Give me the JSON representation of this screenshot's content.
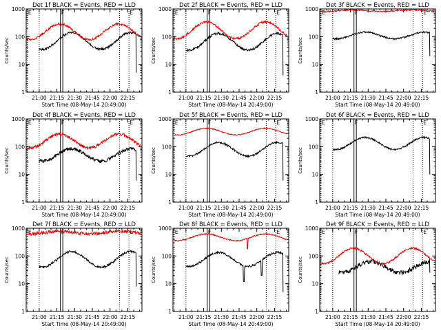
{
  "figure": {
    "background": "#ffffff",
    "axis_color": "#000000",
    "events_color": "#000000",
    "lld_color": "#e00000"
  },
  "chart_data": [
    {
      "type": "line",
      "title": "Det 1f BLACK = Events, RED = LLD",
      "xlabel": "Start Time (08-May-14 20:49:00)",
      "ylabel": "Counts/sec",
      "ylog": true,
      "ylim": [
        1,
        1000
      ],
      "xlim": [
        "20:49",
        "22:27"
      ],
      "x_ticks": [
        "21:00",
        "21:15",
        "21:30",
        "21:45",
        "22:00",
        "22:15"
      ],
      "y_ticks": [
        "1",
        "10",
        "100",
        "1000"
      ],
      "markers": [
        {
          "label": "E",
          "time": "20:50",
          "style": "dotted"
        },
        {
          "label": "",
          "time": "21:00",
          "style": "dotted"
        },
        {
          "label": "F",
          "time": "21:18",
          "style": "solid"
        },
        {
          "label": "",
          "time": "21:20",
          "style": "solid"
        },
        {
          "label": "",
          "time": "22:08",
          "style": "dotted"
        },
        {
          "label": "E",
          "time": "22:16",
          "style": "dotted"
        }
      ],
      "series": [
        {
          "name": "Events",
          "color": "#000000",
          "start": "21:00",
          "end": "22:22",
          "base": 70,
          "amplitude": 0.3,
          "period_min": 50,
          "phase_min": 15,
          "noise": 0.04,
          "drop_end": 5,
          "spikes": []
        },
        {
          "name": "LLD",
          "color": "#e00000",
          "start": "20:50",
          "end": "22:26",
          "base": 150,
          "amplitude": 0.28,
          "period_min": 50,
          "phase_min": 15,
          "noise": 0.04,
          "drop_end": null,
          "spikes": []
        }
      ]
    },
    {
      "type": "line",
      "title": "Det 2f BLACK = Events, RED = LLD",
      "xlabel": "Start Time (08-May-14 20:49:00)",
      "ylabel": "Counts/sec",
      "ylog": true,
      "ylim": [
        1,
        1000
      ],
      "xlim": [
        "20:49",
        "22:27"
      ],
      "x_ticks": [
        "21:00",
        "21:15",
        "21:30",
        "21:45",
        "22:00",
        "22:15"
      ],
      "y_ticks": [
        "1",
        "10",
        "100",
        "1000"
      ],
      "markers": [
        {
          "label": "E",
          "time": "20:50",
          "style": "dotted"
        },
        {
          "label": "",
          "time": "21:00",
          "style": "dotted"
        },
        {
          "label": "F",
          "time": "21:18",
          "style": "solid"
        },
        {
          "label": "",
          "time": "21:20",
          "style": "solid"
        },
        {
          "label": "",
          "time": "22:08",
          "style": "dotted"
        },
        {
          "label": "E",
          "time": "22:16",
          "style": "dotted"
        }
      ],
      "series": [
        {
          "name": "Events",
          "color": "#000000",
          "start": "21:00",
          "end": "22:22",
          "base": 65,
          "amplitude": 0.3,
          "period_min": 50,
          "phase_min": 15,
          "noise": 0.04,
          "drop_end": 4,
          "spikes": []
        },
        {
          "name": "LLD",
          "color": "#e00000",
          "start": "20:50",
          "end": "22:26",
          "base": 170,
          "amplitude": 0.3,
          "period_min": 50,
          "phase_min": 15,
          "noise": 0.04,
          "drop_end": null,
          "spikes": []
        }
      ]
    },
    {
      "type": "line",
      "title": "Det 3f BLACK = Events, RED = LLD",
      "xlabel": "Start Time (08-May-14 20:49:00)",
      "ylabel": "Counts/sec",
      "ylog": true,
      "ylim": [
        1,
        1000
      ],
      "xlim": [
        "20:49",
        "22:27"
      ],
      "x_ticks": [
        "21:00",
        "21:15",
        "21:30",
        "21:45",
        "22:00",
        "22:15"
      ],
      "y_ticks": [
        "1",
        "10",
        "100",
        "1000"
      ],
      "markers": [
        {
          "label": "E",
          "time": "20:50",
          "style": "dotted"
        },
        {
          "label": "",
          "time": "21:00",
          "style": "dotted"
        },
        {
          "label": "F",
          "time": "21:18",
          "style": "solid"
        },
        {
          "label": "",
          "time": "21:20",
          "style": "solid"
        },
        {
          "label": "",
          "time": "22:08",
          "style": "dotted"
        },
        {
          "label": "E",
          "time": "22:16",
          "style": "dotted"
        }
      ],
      "series": [
        {
          "name": "Events",
          "color": "#000000",
          "start": "21:00",
          "end": "22:22",
          "base": 110,
          "amplitude": 0.12,
          "period_min": 50,
          "phase_min": 15,
          "noise": 0.03,
          "drop_end": 20,
          "spikes": []
        },
        {
          "name": "LLD",
          "color": "#e00000",
          "start": "20:50",
          "end": "22:26",
          "base": 860,
          "amplitude": 0.03,
          "period_min": 50,
          "phase_min": 15,
          "noise": 0.025,
          "drop_end": null,
          "spikes": []
        }
      ]
    },
    {
      "type": "line",
      "title": "Det 4f BLACK = Events, RED = LLD",
      "xlabel": "Start Time (08-May-14 20:49:00)",
      "ylabel": "Counts/sec",
      "ylog": true,
      "ylim": [
        1,
        1000
      ],
      "xlim": [
        "20:49",
        "22:27"
      ],
      "x_ticks": [
        "21:00",
        "21:15",
        "21:30",
        "21:45",
        "22:00",
        "22:15"
      ],
      "y_ticks": [
        "1",
        "10",
        "100",
        "1000"
      ],
      "markers": [
        {
          "label": "E",
          "time": "20:50",
          "style": "dotted"
        },
        {
          "label": "",
          "time": "21:00",
          "style": "dotted"
        },
        {
          "label": "F",
          "time": "21:18",
          "style": "solid"
        },
        {
          "label": "",
          "time": "21:20",
          "style": "solid"
        },
        {
          "label": "",
          "time": "22:08",
          "style": "dotted"
        },
        {
          "label": "E",
          "time": "22:16",
          "style": "dotted"
        }
      ],
      "series": [
        {
          "name": "Events",
          "color": "#000000",
          "start": "21:00",
          "end": "22:22",
          "base": 50,
          "amplitude": 0.22,
          "period_min": 50,
          "phase_min": 15,
          "noise": 0.06,
          "drop_end": 6,
          "spikes": []
        },
        {
          "name": "LLD",
          "color": "#e00000",
          "start": "20:50",
          "end": "22:26",
          "base": 160,
          "amplitude": 0.25,
          "period_min": 50,
          "phase_min": 15,
          "noise": 0.05,
          "drop_end": null,
          "spikes": []
        }
      ]
    },
    {
      "type": "line",
      "title": "Det 5f BLACK = Events, RED = LLD",
      "xlabel": "Start Time (08-May-14 20:49:00)",
      "ylabel": "Counts/sec",
      "ylog": true,
      "ylim": [
        1,
        1000
      ],
      "xlim": [
        "20:49",
        "22:27"
      ],
      "x_ticks": [
        "21:00",
        "21:15",
        "21:30",
        "21:45",
        "22:00",
        "22:15"
      ],
      "y_ticks": [
        "1",
        "10",
        "100",
        "1000"
      ],
      "markers": [
        {
          "label": "E",
          "time": "20:50",
          "style": "dotted"
        },
        {
          "label": "",
          "time": "21:00",
          "style": "dotted"
        },
        {
          "label": "F",
          "time": "21:18",
          "style": "solid"
        },
        {
          "label": "",
          "time": "21:20",
          "style": "solid"
        },
        {
          "label": "",
          "time": "22:08",
          "style": "dotted"
        },
        {
          "label": "E",
          "time": "22:16",
          "style": "dotted"
        }
      ],
      "series": [
        {
          "name": "Events",
          "color": "#000000",
          "start": "21:00",
          "end": "22:22",
          "base": 80,
          "amplitude": 0.25,
          "period_min": 50,
          "phase_min": 15,
          "noise": 0.03,
          "drop_end": 6,
          "spikes": []
        },
        {
          "name": "LLD",
          "color": "#e00000",
          "start": "20:50",
          "end": "22:26",
          "base": 350,
          "amplitude": 0.12,
          "period_min": 50,
          "phase_min": 15,
          "noise": 0.015,
          "drop_end": null,
          "spikes": []
        }
      ]
    },
    {
      "type": "line",
      "title": "Det 6f BLACK = Events, RED = LLD",
      "xlabel": "Start Time (08-May-14 20:49:00)",
      "ylabel": "Counts/sec",
      "ylog": true,
      "ylim": [
        1,
        1000
      ],
      "xlim": [
        "20:49",
        "22:27"
      ],
      "x_ticks": [
        "21:00",
        "21:15",
        "21:30",
        "21:45",
        "22:00",
        "22:15"
      ],
      "y_ticks": [
        "1",
        "10",
        "100",
        "1000"
      ],
      "markers": [
        {
          "label": "E",
          "time": "20:50",
          "style": "dotted"
        },
        {
          "label": "",
          "time": "21:00",
          "style": "dotted"
        },
        {
          "label": "F",
          "time": "21:18",
          "style": "solid"
        },
        {
          "label": "",
          "time": "21:20",
          "style": "solid"
        },
        {
          "label": "",
          "time": "22:08",
          "style": "dotted"
        },
        {
          "label": "E",
          "time": "22:16",
          "style": "dotted"
        }
      ],
      "series": [
        {
          "name": "Events",
          "color": "#000000",
          "start": "21:00",
          "end": "22:22",
          "base": 130,
          "amplitude": 0.22,
          "period_min": 50,
          "phase_min": 15,
          "noise": 0.03,
          "drop_end": 10,
          "spikes": []
        }
      ]
    },
    {
      "type": "line",
      "title": "Det 7f BLACK = Events, RED = LLD",
      "xlabel": "Start Time (08-May-14 20:49:00)",
      "ylabel": "Counts/sec",
      "ylog": true,
      "ylim": [
        1,
        1000
      ],
      "xlim": [
        "20:49",
        "22:27"
      ],
      "x_ticks": [
        "21:00",
        "21:15",
        "21:30",
        "21:45",
        "22:00",
        "22:15"
      ],
      "y_ticks": [
        "1",
        "10",
        "100",
        "1000"
      ],
      "markers": [
        {
          "label": "E",
          "time": "20:50",
          "style": "dotted"
        },
        {
          "label": "",
          "time": "21:00",
          "style": "dotted"
        },
        {
          "label": "F",
          "time": "21:18",
          "style": "solid"
        },
        {
          "label": "",
          "time": "21:20",
          "style": "solid"
        },
        {
          "label": "",
          "time": "22:08",
          "style": "dotted"
        },
        {
          "label": "E",
          "time": "22:16",
          "style": "dotted"
        }
      ],
      "series": [
        {
          "name": "Events",
          "color": "#000000",
          "start": "21:00",
          "end": "22:22",
          "base": 75,
          "amplitude": 0.28,
          "period_min": 50,
          "phase_min": 15,
          "noise": 0.04,
          "drop_end": 8,
          "spikes": []
        },
        {
          "name": "LLD",
          "color": "#e00000",
          "start": "20:50",
          "end": "22:26",
          "base": 700,
          "amplitude": 0.05,
          "period_min": 50,
          "phase_min": 15,
          "noise": 0.06,
          "drop_end": null,
          "spikes": []
        }
      ]
    },
    {
      "type": "line",
      "title": "Det 8f BLACK = Events, RED = LLD",
      "xlabel": "Start Time (08-May-14 20:49:00)",
      "ylabel": "Counts/sec",
      "ylog": true,
      "ylim": [
        1,
        1000
      ],
      "xlim": [
        "20:49",
        "22:27"
      ],
      "x_ticks": [
        "21:00",
        "21:15",
        "21:30",
        "21:45",
        "22:00",
        "22:15"
      ],
      "y_ticks": [
        "1",
        "10",
        "100",
        "1000"
      ],
      "markers": [
        {
          "label": "E",
          "time": "20:50",
          "style": "dotted"
        },
        {
          "label": "",
          "time": "21:00",
          "style": "dotted"
        },
        {
          "label": "F",
          "time": "21:18",
          "style": "solid"
        },
        {
          "label": "",
          "time": "21:20",
          "style": "solid"
        },
        {
          "label": "",
          "time": "22:08",
          "style": "dotted"
        },
        {
          "label": "E",
          "time": "22:16",
          "style": "dotted"
        }
      ],
      "series": [
        {
          "name": "Events",
          "color": "#000000",
          "start": "21:00",
          "end": "22:22",
          "base": 75,
          "amplitude": 0.25,
          "period_min": 50,
          "phase_min": 15,
          "noise": 0.035,
          "drop_end": 5,
          "spikes": [
            {
              "time": "21:49",
              "value": 12
            },
            {
              "time": "22:04",
              "value": 20
            }
          ]
        },
        {
          "name": "LLD",
          "color": "#e00000",
          "start": "20:50",
          "end": "22:26",
          "base": 470,
          "amplitude": 0.12,
          "period_min": 50,
          "phase_min": 15,
          "noise": 0.02,
          "drop_end": null,
          "spikes": [
            {
              "time": "21:52",
              "value": 180
            }
          ]
        }
      ]
    },
    {
      "type": "line",
      "title": "Det 9f BLACK = Events, RED = LLD",
      "xlabel": "Start Time (08-May-14 20:49:00)",
      "ylabel": "Counts/sec",
      "ylog": true,
      "ylim": [
        1,
        1000
      ],
      "xlim": [
        "20:49",
        "22:27"
      ],
      "x_ticks": [
        "21:00",
        "21:15",
        "21:30",
        "21:45",
        "22:00",
        "22:15"
      ],
      "y_ticks": [
        "1",
        "10",
        "100",
        "1000"
      ],
      "markers": [
        {
          "label": "E",
          "time": "20:50",
          "style": "dotted"
        },
        {
          "label": "",
          "time": "21:00",
          "style": "dotted"
        },
        {
          "label": "F",
          "time": "21:18",
          "style": "solid"
        },
        {
          "label": "",
          "time": "21:20",
          "style": "solid"
        },
        {
          "label": "",
          "time": "22:08",
          "style": "dotted"
        },
        {
          "label": "E",
          "time": "22:16",
          "style": "dotted"
        }
      ],
      "series": [
        {
          "name": "Events",
          "color": "#000000",
          "start": "21:05",
          "end": "22:22",
          "base": 40,
          "amplitude": 0.2,
          "period_min": 50,
          "phase_min": 15,
          "noise": 0.08,
          "drop_end": 25,
          "spikes": []
        },
        {
          "name": "LLD",
          "color": "#e00000",
          "start": "20:50",
          "end": "22:26",
          "base": 100,
          "amplitude": 0.28,
          "period_min": 50,
          "phase_min": 15,
          "noise": 0.03,
          "drop_end": null,
          "spikes": []
        }
      ]
    }
  ]
}
